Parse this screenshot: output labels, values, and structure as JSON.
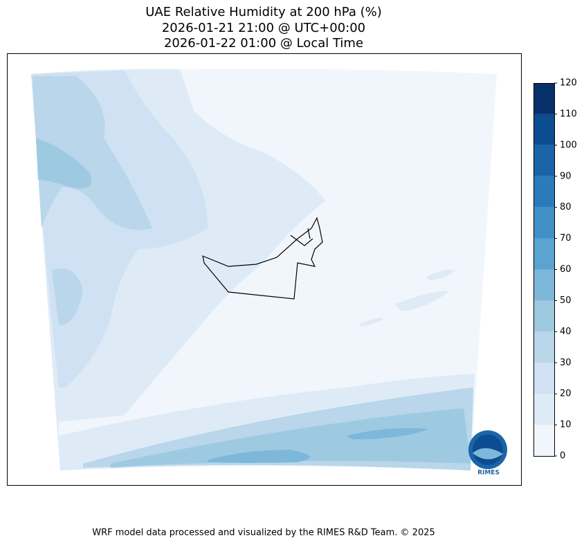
{
  "header": {
    "title_lines": [
      "UAE Relative Humidity at 200 hPa (%)",
      "2026-01-21 21:00 @ UTC+00:00",
      "2026-01-22 01:00 @ Local Time"
    ]
  },
  "colorbar": {
    "lim": [
      0,
      120
    ],
    "ticks": [
      0,
      10,
      20,
      30,
      40,
      50,
      60,
      70,
      80,
      90,
      100,
      110,
      120
    ],
    "colors": [
      "#f0f6fc",
      "#deebf7",
      "#cfe1f2",
      "#b9d6ea",
      "#9ecae1",
      "#7db8da",
      "#5ba3d0",
      "#4090c5",
      "#2b7bba",
      "#1c64a8",
      "#0c4d91",
      "#08306b"
    ]
  },
  "logo": {
    "text": "RIMES"
  },
  "footer": {
    "text": "WRF model data processed and visualized by the RIMES R&D Team. © 2025"
  }
}
